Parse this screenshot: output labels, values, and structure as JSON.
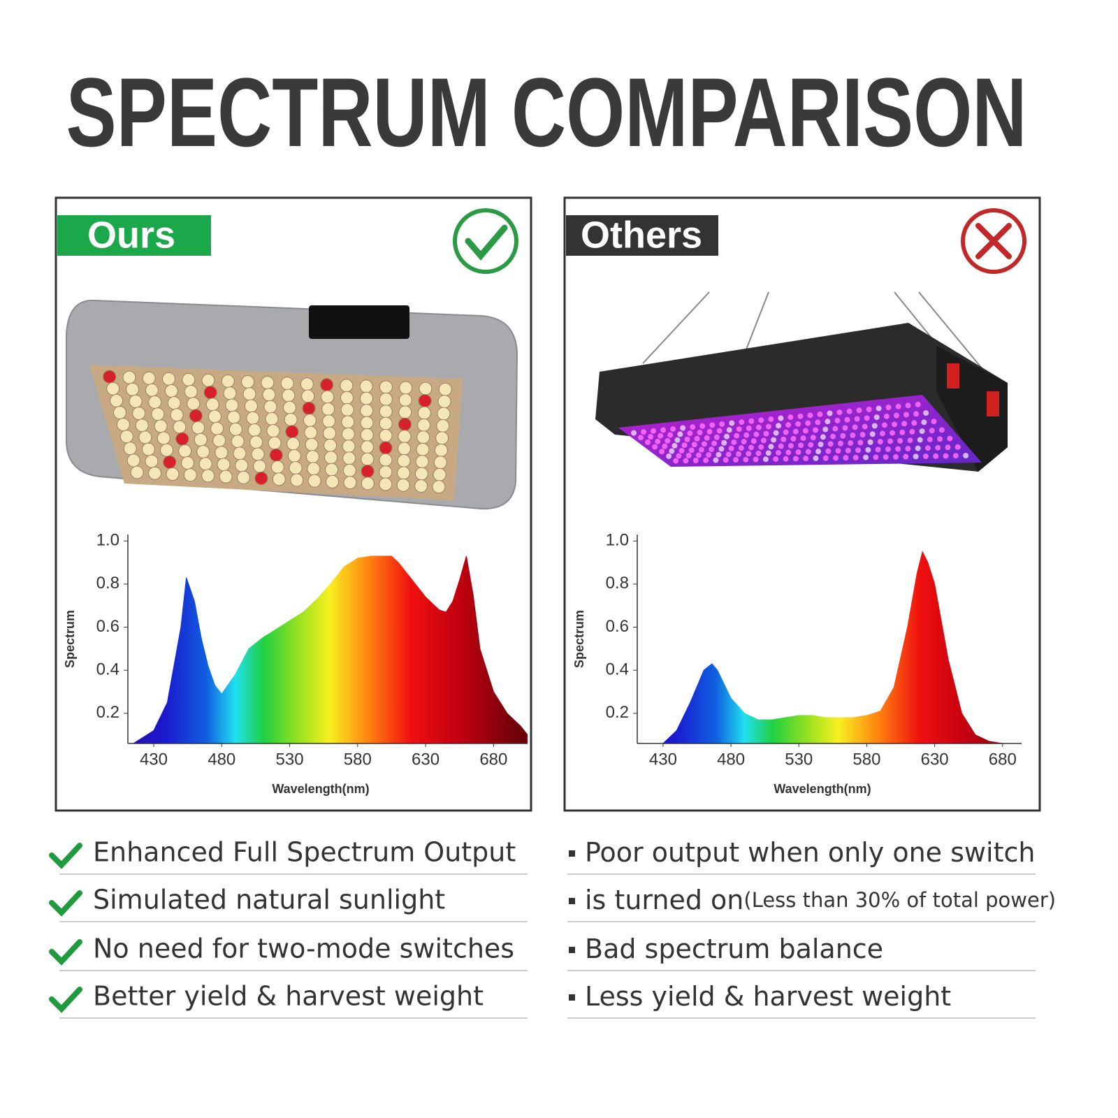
{
  "title": "SPECTRUM COMPARISON",
  "panels": [
    {
      "label": "Ours"
    },
    {
      "label": "Others"
    }
  ],
  "chart_data": [
    {
      "type": "area",
      "xlabel": "Wavelength(nm)",
      "ylabel": "Spectrum",
      "x": [
        415,
        430,
        440,
        450,
        454,
        460,
        465,
        470,
        475,
        480,
        490,
        500,
        510,
        520,
        530,
        540,
        550,
        560,
        570,
        580,
        590,
        600,
        605,
        610,
        620,
        630,
        640,
        645,
        650,
        655,
        660,
        665,
        670,
        680,
        690,
        700,
        705
      ],
      "values": [
        0.06,
        0.12,
        0.25,
        0.6,
        0.83,
        0.72,
        0.55,
        0.42,
        0.33,
        0.29,
        0.38,
        0.5,
        0.55,
        0.59,
        0.63,
        0.67,
        0.73,
        0.8,
        0.88,
        0.92,
        0.93,
        0.93,
        0.93,
        0.9,
        0.82,
        0.74,
        0.68,
        0.67,
        0.72,
        0.82,
        0.93,
        0.75,
        0.5,
        0.3,
        0.2,
        0.14,
        0.1
      ],
      "xlim": [
        411,
        705
      ],
      "ylim": [
        0.06,
        1.03
      ],
      "xticks": [
        430,
        480,
        530,
        580,
        630,
        680
      ],
      "yticks": [
        0.2,
        0.4,
        0.6,
        0.8,
        {
          "value": 1,
          "label": "1.0"
        }
      ]
    },
    {
      "type": "area",
      "xlabel": "Wavelength(nm)",
      "ylabel": "Spectrum",
      "x": [
        430,
        440,
        450,
        460,
        466,
        470,
        480,
        490,
        500,
        510,
        520,
        530,
        540,
        550,
        560,
        570,
        580,
        590,
        600,
        610,
        617,
        621,
        625,
        630,
        640,
        650,
        660,
        670,
        680
      ],
      "values": [
        0.06,
        0.12,
        0.25,
        0.4,
        0.43,
        0.4,
        0.27,
        0.2,
        0.17,
        0.17,
        0.18,
        0.19,
        0.19,
        0.18,
        0.18,
        0.18,
        0.19,
        0.21,
        0.32,
        0.6,
        0.85,
        0.95,
        0.9,
        0.8,
        0.45,
        0.2,
        0.1,
        0.07,
        0.06
      ],
      "xlim": [
        411,
        694
      ],
      "ylim": [
        0.06,
        1.03
      ],
      "xticks": [
        430,
        480,
        530,
        580,
        630,
        680
      ],
      "yticks": [
        0.2,
        0.4,
        0.6,
        0.8,
        {
          "value": 1,
          "label": "1.0"
        }
      ]
    }
  ],
  "bullets": {
    "ours": [
      "Enhanced Full Spectrum Output",
      "Simulated natural sunlight",
      "No need for two-mode switches",
      "Better yield & harvest weight"
    ],
    "others": [
      {
        "text": "Poor output when only one switch"
      },
      {
        "text": "is turned on",
        "note": "(Less than 30% of total power)"
      },
      {
        "text": "Bad spectrum balance"
      },
      {
        "text": "Less yield & harvest weight"
      }
    ]
  }
}
